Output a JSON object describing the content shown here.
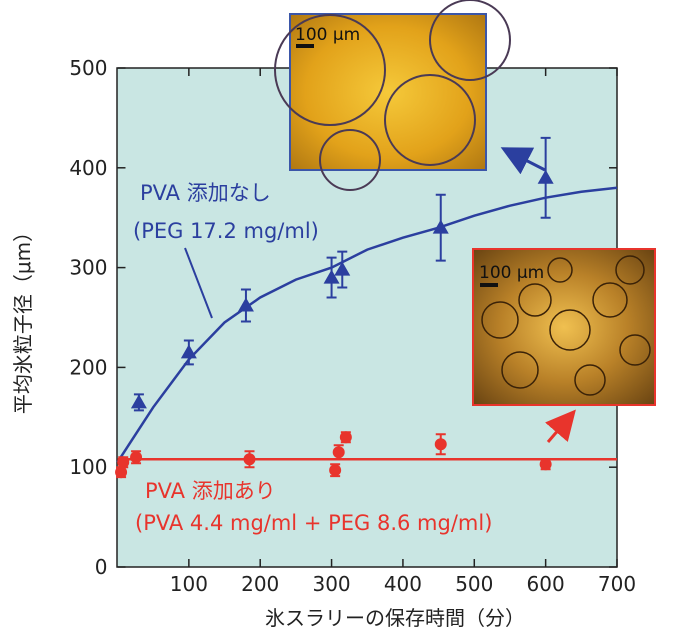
{
  "chart_data": {
    "type": "scatter",
    "x_label": "氷スラリーの保存時間（分）",
    "y_label": "平均氷粒子径（μm）",
    "xlim": [
      0,
      700
    ],
    "xticks": [
      100,
      200,
      300,
      400,
      500,
      600,
      700
    ],
    "ylim": [
      0,
      500
    ],
    "yticks": [
      0,
      100,
      200,
      300,
      400,
      500
    ],
    "series": [
      {
        "marker": "triangle",
        "color": "#2b3f9f",
        "x": [
          30,
          100,
          180,
          300,
          315,
          453,
          600
        ],
        "values": [
          165,
          215,
          262,
          290,
          298,
          340,
          390
        ],
        "errors": [
          8,
          12,
          16,
          20,
          18,
          33,
          40
        ]
      },
      {
        "marker": "circle",
        "color": "#e8342c",
        "x": [
          5,
          8,
          26,
          185,
          305,
          310,
          320,
          453,
          600
        ],
        "values": [
          95,
          105,
          110,
          108,
          97,
          115,
          130,
          123,
          103
        ],
        "errors": [
          5,
          5,
          6,
          8,
          6,
          7,
          5,
          10,
          5
        ]
      }
    ],
    "fits": [
      {
        "color": "#2b3f9f",
        "x": [
          0,
          50,
          100,
          150,
          200,
          250,
          300,
          350,
          400,
          450,
          500,
          550,
          600,
          650,
          700
        ],
        "values": [
          105,
          160,
          208,
          245,
          270,
          288,
          300,
          318,
          330,
          340,
          352,
          362,
          370,
          376,
          380
        ]
      },
      {
        "color": "#e8342c",
        "x": [
          0,
          700
        ],
        "values": [
          108,
          108
        ]
      }
    ],
    "annotations": [
      {
        "text": "PVA 添加なし",
        "color": "#2b3f9f"
      },
      {
        "text": "(PEG 17.2 mg/ml)",
        "color": "#2b3f9f"
      },
      {
        "text": "PVA  添加あり",
        "color": "#e8342c"
      },
      {
        "text": "(PVA 4.4 mg/ml + PEG 8.6 mg/ml)",
        "color": "#e8342c"
      }
    ],
    "insets": [
      {
        "scale_label": "100 μm",
        "border": "#3b56a8"
      },
      {
        "scale_label": "100 μm",
        "border": "#e8342c"
      }
    ]
  }
}
